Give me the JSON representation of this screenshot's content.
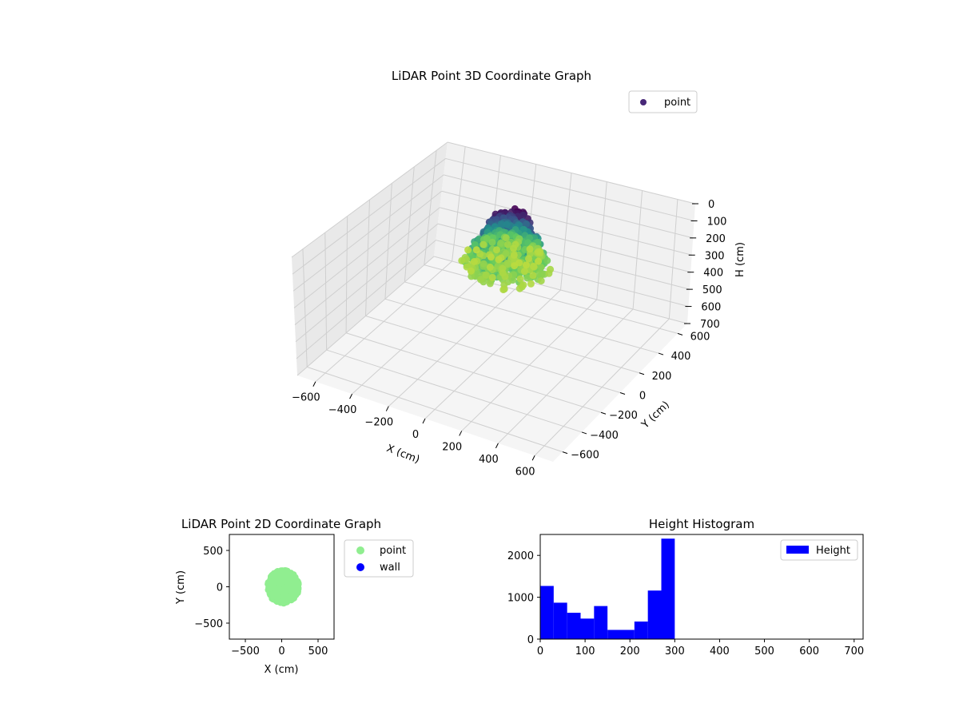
{
  "colors": {
    "point_legend": "#482878",
    "scatter2d_point": "#90ee90",
    "scatter2d_wall": "#0000ff",
    "histogram": "#0000ff",
    "viridis_top": "#440154",
    "viridis_mid": "#21918c",
    "viridis_bottom": "#b5de2b",
    "pane_left": "#e9e9e9",
    "pane_right": "#f0f0f0",
    "pane_floor": "#f4f4f4",
    "grid": "#cfcfcf"
  },
  "chart_data": [
    {
      "type": "scatter3d",
      "title": "LiDAR Point 3D Coordinate Graph",
      "xlabel": "X (cm)",
      "ylabel": "Y (cm)",
      "zlabel": "H (cm)",
      "xlim": [
        -700,
        700
      ],
      "ylim": [
        -700,
        700
      ],
      "zlim": [
        0,
        700
      ],
      "z_inverted": true,
      "x_ticks": [
        "−600",
        "−400",
        "−200",
        "0",
        "200",
        "400",
        "600"
      ],
      "y_ticks": [
        "−600",
        "−400",
        "−200",
        "0",
        "200",
        "400",
        "600"
      ],
      "z_ticks": [
        "0",
        "100",
        "200",
        "300",
        "400",
        "500",
        "600",
        "700"
      ],
      "legend": {
        "entries": [
          "point"
        ],
        "placement": "upper-right"
      },
      "colormap": "viridis",
      "cluster": {
        "x_center": -50,
        "y_center": 150,
        "radius": 230,
        "h_min": 0,
        "h_max": 300
      },
      "grid": true
    },
    {
      "type": "scatter",
      "title": "LiDAR Point 2D Coordinate Graph",
      "xlabel": "X (cm)",
      "ylabel": "Y (cm)",
      "xlim": [
        -720,
        720
      ],
      "ylim": [
        -720,
        720
      ],
      "x_ticks": [
        "−500",
        "0",
        "500"
      ],
      "y_ticks": [
        "−500",
        "0",
        "500"
      ],
      "legend": {
        "entries": [
          "point",
          "wall"
        ],
        "placement": "outside-right"
      },
      "series": [
        {
          "name": "point",
          "cluster": {
            "x_center": 20,
            "y_center": 0,
            "radius": 230
          }
        },
        {
          "name": "wall",
          "points": []
        }
      ]
    },
    {
      "type": "bar",
      "title": "Height Histogram",
      "xlim": [
        0,
        720
      ],
      "ylim": [
        0,
        2500
      ],
      "x_ticks": [
        "0",
        "100",
        "200",
        "300",
        "400",
        "500",
        "600",
        "700"
      ],
      "y_ticks": [
        "0",
        "1000",
        "2000"
      ],
      "legend": {
        "entries": [
          "Height"
        ],
        "placement": "upper-right"
      },
      "bin_edges": [
        0,
        30,
        60,
        90,
        120,
        150,
        180,
        210,
        240,
        270,
        300
      ],
      "counts": [
        1270,
        870,
        630,
        490,
        790,
        220,
        220,
        420,
        1160,
        2400
      ]
    }
  ]
}
